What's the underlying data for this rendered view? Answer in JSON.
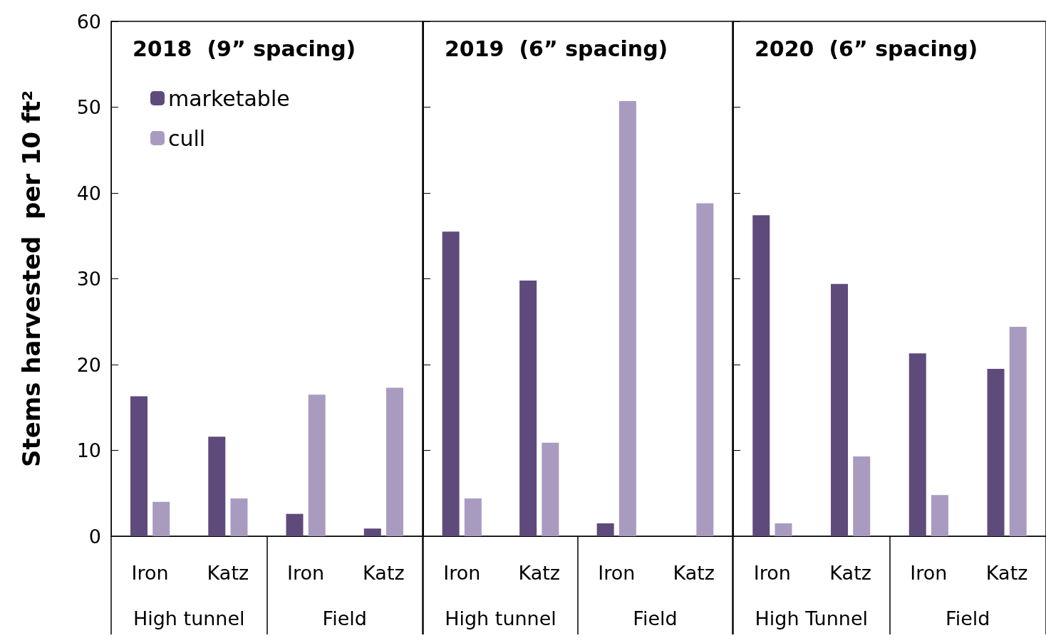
{
  "chart_data": [
    {
      "type": "bar",
      "title": "2018  (9” spacing)",
      "ylabel": "Stems harvested  per 10 ft²",
      "categories": [
        "Iron",
        "Katz",
        "Iron",
        "Katz"
      ],
      "annotations": [
        "High tunnel",
        "Field"
      ],
      "ylim": [
        0,
        60
      ],
      "yticks": [
        0,
        10,
        20,
        30,
        40,
        50,
        60
      ],
      "grid": false,
      "legend": "top left",
      "series": [
        {
          "name": "marketable",
          "color": "#5e4b7b",
          "values": [
            16.3,
            11.6,
            2.6,
            0.9
          ]
        },
        {
          "name": "cull",
          "color": "#a99bc0",
          "values": [
            4.0,
            4.4,
            16.5,
            17.3
          ]
        }
      ]
    },
    {
      "type": "bar",
      "title": "2019  (6” spacing)",
      "categories": [
        "Iron",
        "Katz",
        "Iron",
        "Katz"
      ],
      "annotations": [
        "High tunnel",
        "Field"
      ],
      "ylim": [
        0,
        60
      ],
      "yticks": [
        0,
        10,
        20,
        30,
        40,
        50,
        60
      ],
      "grid": false,
      "tick_labels": "x",
      "series": [
        {
          "color": "#5e4b7b",
          "values": [
            35.5,
            29.8,
            1.5,
            0
          ]
        },
        {
          "color": "#a99bc0",
          "values": [
            4.4,
            10.9,
            50.7,
            38.8
          ]
        }
      ]
    },
    {
      "type": "bar",
      "title": "2020  (6” spacing)",
      "categories": [
        "Iron",
        "Katz",
        "Iron",
        "Katz"
      ],
      "annotations": [
        "High Tunnel",
        "Field"
      ],
      "ylim": [
        0,
        60
      ],
      "yticks": [
        0,
        10,
        20,
        30,
        40,
        50,
        60
      ],
      "grid": false,
      "tick_labels": "x",
      "series": [
        {
          "color": "#5e4b7b",
          "values": [
            37.4,
            29.4,
            21.3,
            19.5
          ]
        },
        {
          "color": "#a99bc0",
          "values": [
            1.5,
            9.3,
            4.8,
            24.4
          ]
        }
      ]
    }
  ]
}
